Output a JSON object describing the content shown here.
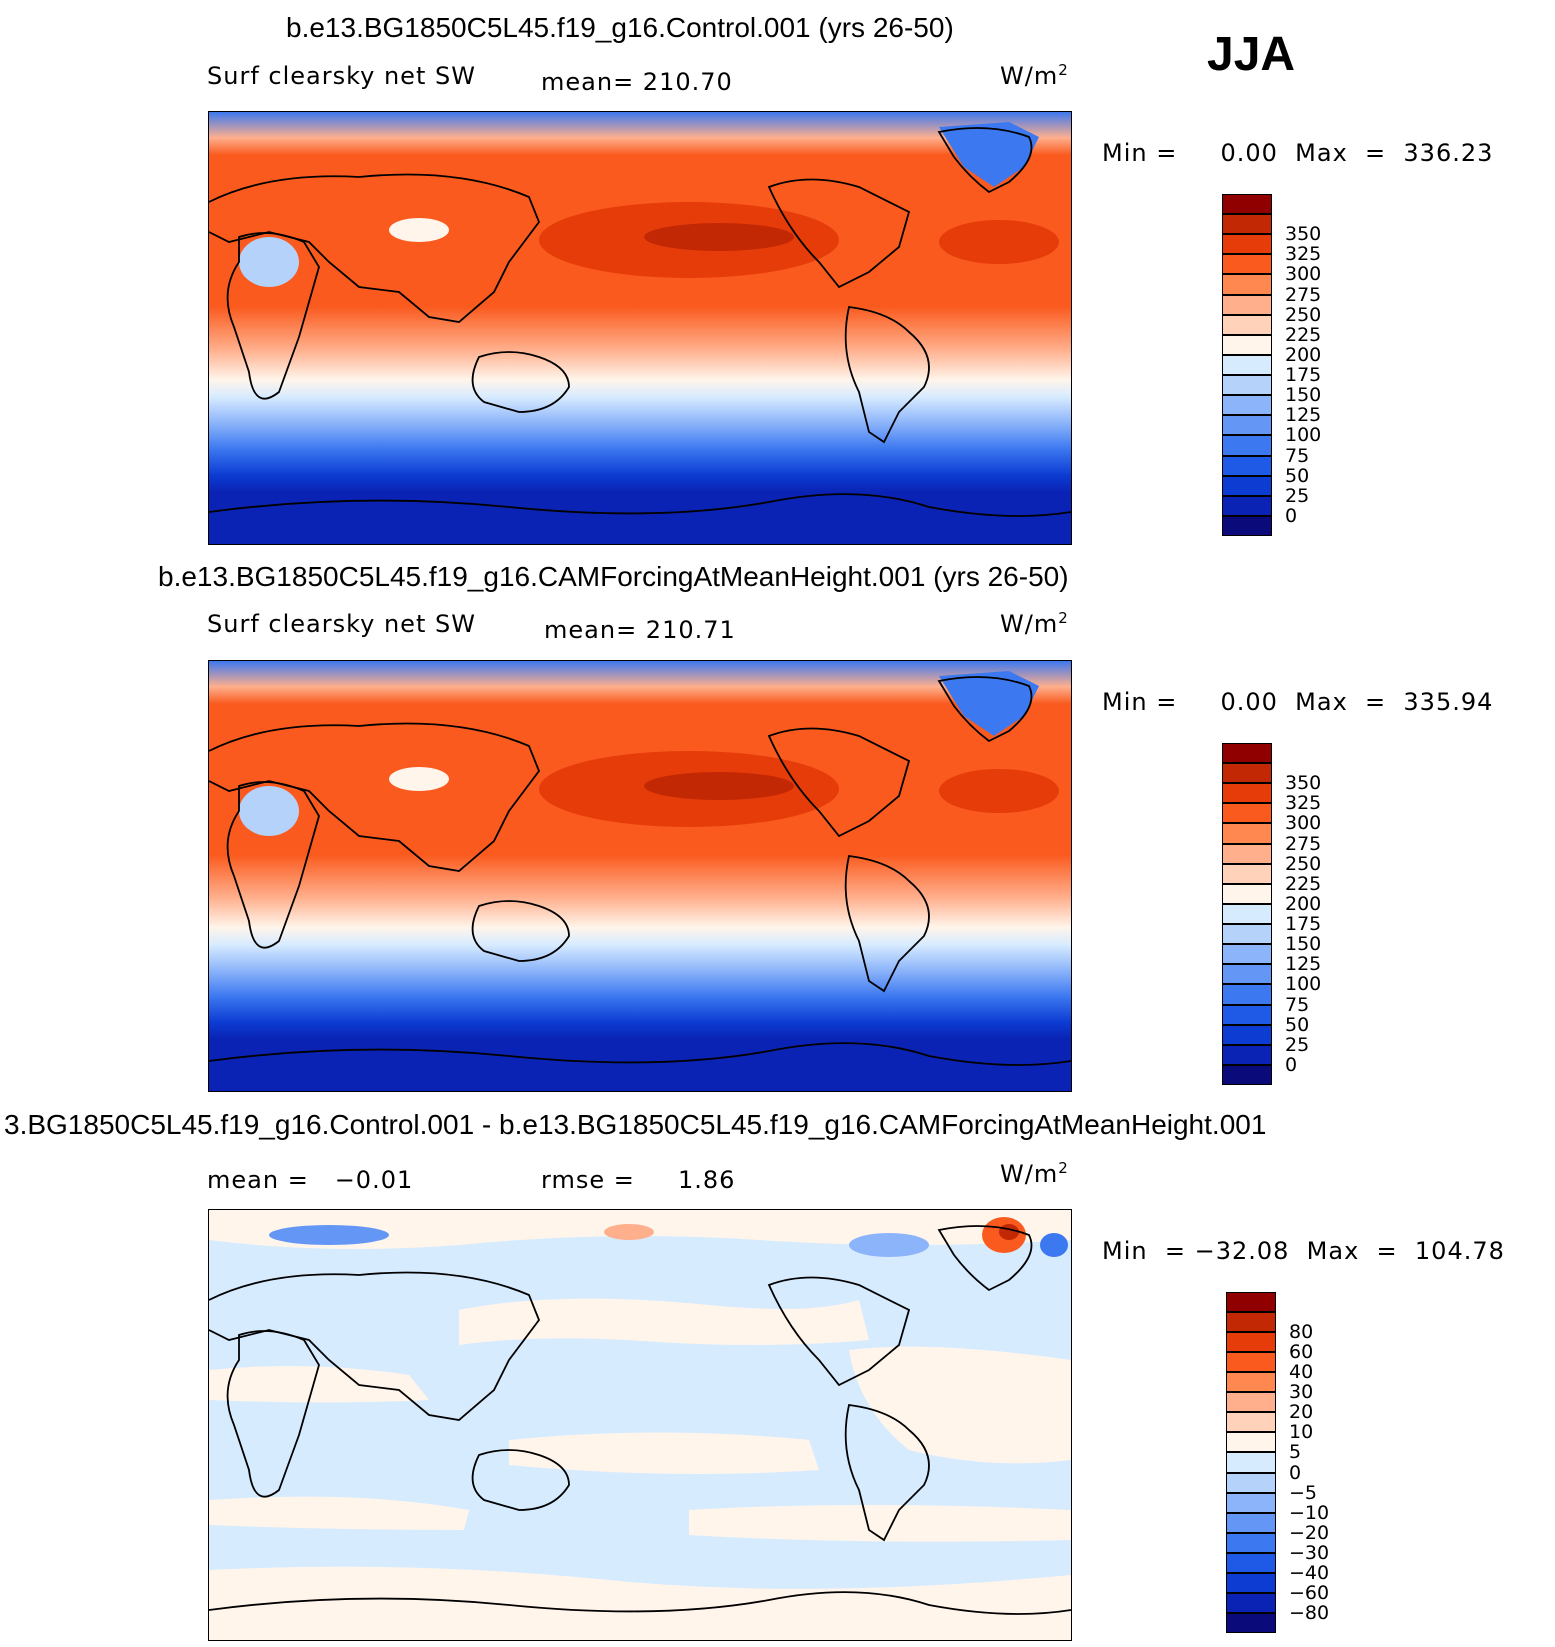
{
  "season": "JJA",
  "unit_base": "W/m",
  "unit_exp": "2",
  "panels": [
    {
      "title": "b.e13.BG1850C5L45.f19_g16.Control.001 (yrs 26-50)",
      "left_label": "Surf clearsky net SW",
      "center_label": "mean= 210.70",
      "stats": "Min =     0.00  Max  =  336.23",
      "legend": {
        "colors": [
          "#0a0a7a",
          "#0a23b4",
          "#0c3cd2",
          "#1e5ae6",
          "#3c78f0",
          "#6496f5",
          "#8cb4fa",
          "#b4d2fa",
          "#d7ebff",
          "#fff5eb",
          "#ffd2b9",
          "#ffaf8c",
          "#ff8750",
          "#fa5a1e",
          "#e63c0a",
          "#c32805",
          "#910000"
        ],
        "ticks": [
          "0",
          "25",
          "50",
          "75",
          "100",
          "125",
          "150",
          "175",
          "200",
          "225",
          "250",
          "275",
          "300",
          "325",
          "350"
        ]
      }
    },
    {
      "title": "b.e13.BG1850C5L45.f19_g16.CAMForcingAtMeanHeight.001 (yrs 26-50)",
      "left_label": "Surf clearsky net SW",
      "center_label": "mean= 210.71",
      "stats": "Min =     0.00  Max  =  335.94",
      "legend": {
        "colors": [
          "#0a0a7a",
          "#0a23b4",
          "#0c3cd2",
          "#1e5ae6",
          "#3c78f0",
          "#6496f5",
          "#8cb4fa",
          "#b4d2fa",
          "#d7ebff",
          "#fff5eb",
          "#ffd2b9",
          "#ffaf8c",
          "#ff8750",
          "#fa5a1e",
          "#e63c0a",
          "#c32805",
          "#910000"
        ],
        "ticks": [
          "0",
          "25",
          "50",
          "75",
          "100",
          "125",
          "150",
          "175",
          "200",
          "225",
          "250",
          "275",
          "300",
          "325",
          "350"
        ]
      }
    },
    {
      "title": "3.BG1850C5L45.f19_g16.Control.001 - b.e13.BG1850C5L45.f19_g16.CAMForcingAtMeanHeight.001",
      "left_label": "mean =   −0.01",
      "center_label": "rmse =     1.86",
      "stats": "Min  = −32.08  Max  =  104.78",
      "legend": {
        "colors": [
          "#0a0a7a",
          "#0a23b4",
          "#0c3cd2",
          "#1e5ae6",
          "#3c78f0",
          "#6496f5",
          "#8cb4fa",
          "#b4d2fa",
          "#d7ebff",
          "#fff5eb",
          "#ffd2b9",
          "#ffaf8c",
          "#ff8750",
          "#fa5a1e",
          "#e63c0a",
          "#c32805",
          "#910000"
        ],
        "ticks": [
          "−80",
          "−60",
          "−40",
          "−30",
          "−20",
          "−10",
          "−5",
          "0",
          "5",
          "10",
          "20",
          "30",
          "40",
          "60",
          "80"
        ]
      }
    }
  ]
}
